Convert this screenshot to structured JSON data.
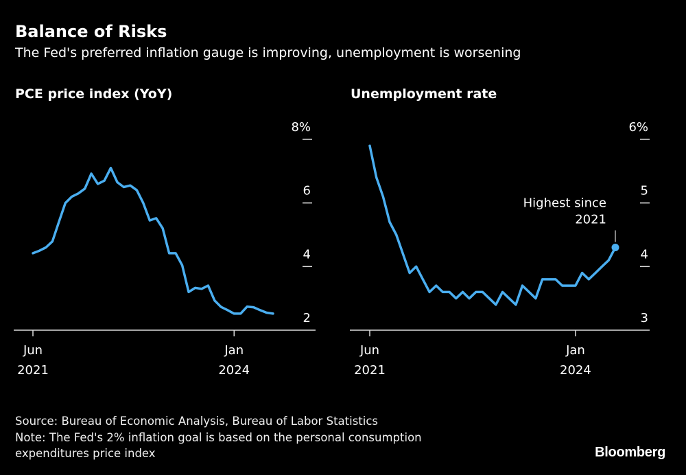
{
  "title": "Balance of Risks",
  "subtitle": "The Fed's preferred inflation gauge is improving, unemployment is worsening",
  "footer": {
    "source": "Source: Bureau of Economic Analysis, Bureau of Labor Statistics",
    "note_line1": "Note: The Fed's 2% inflation goal is based on the personal consumption",
    "note_line2": "expenditures price index",
    "logo": "Bloomberg"
  },
  "colors": {
    "background": "#000000",
    "line": "#4aaef0",
    "text": "#ffffff"
  },
  "chart_data": [
    {
      "type": "line",
      "title": "PCE price index (YoY)",
      "x_start": "2021-06",
      "x_end": "2024-07",
      "frequency": "monthly",
      "x_ticks": [
        {
          "label": [
            "Jun",
            "2021"
          ],
          "month": "2021-06"
        },
        {
          "label": [
            "Jan",
            "2024"
          ],
          "month": "2024-01"
        }
      ],
      "y_ticks": [
        "8%",
        "6",
        "4",
        "2"
      ],
      "y_tick_values": [
        8,
        6,
        4,
        2
      ],
      "ylim": [
        2,
        8
      ],
      "values": [
        4.42,
        4.5,
        4.6,
        4.79,
        5.4,
        6.0,
        6.2,
        6.3,
        6.45,
        6.92,
        6.6,
        6.7,
        7.1,
        6.65,
        6.5,
        6.55,
        6.4,
        6.0,
        5.45,
        5.52,
        5.2,
        4.42,
        4.42,
        4.04,
        3.2,
        3.33,
        3.3,
        3.4,
        2.93,
        2.73,
        2.63,
        2.52,
        2.52,
        2.74,
        2.72,
        2.63,
        2.55,
        2.52
      ],
      "grid": false
    },
    {
      "type": "line",
      "title": "Unemployment rate",
      "x_start": "2021-06",
      "x_end": "2024-07",
      "frequency": "monthly",
      "x_ticks": [
        {
          "label": [
            "Jun",
            "2021"
          ],
          "month": "2021-06"
        },
        {
          "label": [
            "Jan",
            "2024"
          ],
          "month": "2024-01"
        }
      ],
      "y_ticks": [
        "6%",
        "5",
        "4",
        "3"
      ],
      "y_tick_values": [
        6,
        5,
        4,
        3
      ],
      "ylim": [
        3,
        6
      ],
      "values": [
        5.9,
        5.4,
        5.1,
        4.7,
        4.5,
        4.2,
        3.9,
        4.0,
        3.8,
        3.6,
        3.7,
        3.6,
        3.6,
        3.5,
        3.6,
        3.5,
        3.6,
        3.6,
        3.5,
        3.4,
        3.6,
        3.5,
        3.4,
        3.7,
        3.6,
        3.5,
        3.8,
        3.8,
        3.8,
        3.7,
        3.7,
        3.7,
        3.9,
        3.8,
        3.9,
        4.0,
        4.1,
        4.3
      ],
      "annotation": {
        "text": [
          "Highest since",
          "2021"
        ],
        "point_month": "2024-07",
        "value": 4.3
      },
      "grid": false
    }
  ]
}
